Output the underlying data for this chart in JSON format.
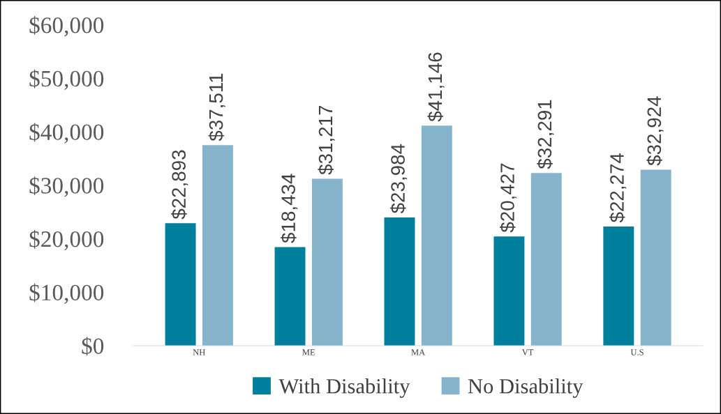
{
  "chart_data": {
    "type": "bar",
    "categories": [
      "NH",
      "ME",
      "MA",
      "VT",
      "U.S"
    ],
    "series": [
      {
        "name": "With Disability",
        "color": "#00809d",
        "values": [
          22893,
          18434,
          23984,
          20427,
          22274
        ],
        "value_labels": [
          "$22,893",
          "$18,434",
          "$23,984",
          "$20,427",
          "$22,274"
        ]
      },
      {
        "name": "No Disability",
        "color": "#85b4cc",
        "values": [
          37511,
          31217,
          41146,
          32291,
          32924
        ],
        "value_labels": [
          "$37,511",
          "$31,217",
          "$41,146",
          "$32,291",
          "$32,924"
        ]
      }
    ],
    "ylim": [
      0,
      60000
    ],
    "yticks": [
      {
        "value": 0,
        "label": "$0"
      },
      {
        "value": 10000,
        "label": "$10,000"
      },
      {
        "value": 20000,
        "label": "$20,000"
      },
      {
        "value": 30000,
        "label": "$30,000"
      },
      {
        "value": 40000,
        "label": "$40,000"
      },
      {
        "value": 50000,
        "label": "$50,000"
      },
      {
        "value": 60000,
        "label": "$60,000"
      }
    ],
    "grid": false,
    "legend": "bottom"
  }
}
